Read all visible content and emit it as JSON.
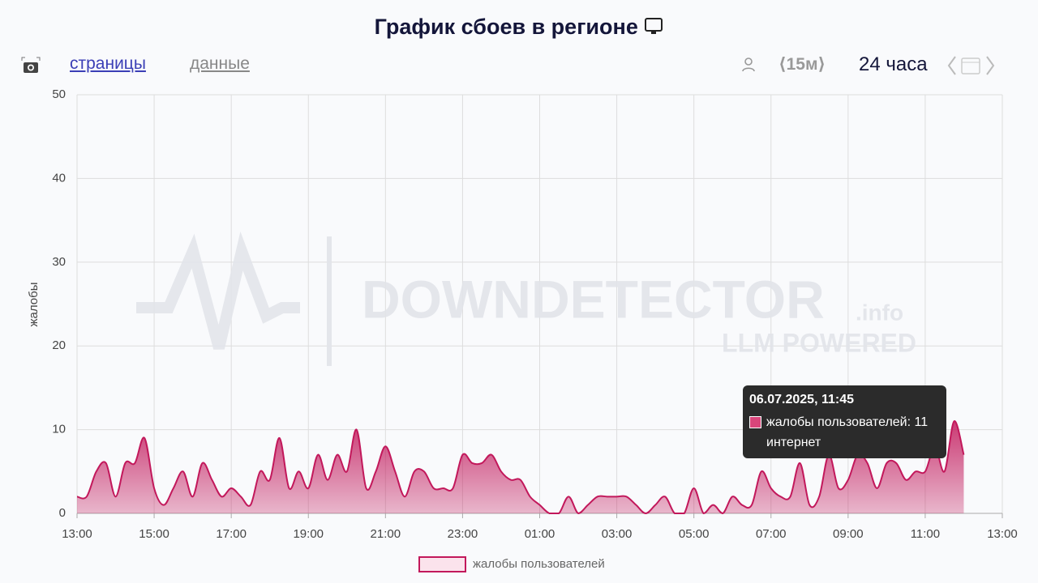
{
  "header": {
    "title": "График сбоев в регионе"
  },
  "toolbar": {
    "tab_pages": "страницы",
    "tab_data": "данные",
    "interval": "⟨15м⟩",
    "range": "24 часа"
  },
  "watermark": {
    "brand": "DOWNDETECTOR",
    "domain": ".info",
    "tagline": "LLM POWERED"
  },
  "tooltip": {
    "title": "06.07.2025, 11:45",
    "label": "жалобы пользователей: 11",
    "sub": "интернет"
  },
  "chart_data": {
    "type": "area",
    "y_label": "жалобы",
    "x": [
      "13:00",
      "13:15",
      "13:30",
      "13:45",
      "14:00",
      "14:15",
      "14:30",
      "14:45",
      "15:00",
      "15:15",
      "15:30",
      "15:45",
      "16:00",
      "16:15",
      "16:30",
      "16:45",
      "17:00",
      "17:15",
      "17:30",
      "17:45",
      "18:00",
      "18:15",
      "18:30",
      "18:45",
      "19:00",
      "19:15",
      "19:30",
      "19:45",
      "20:00",
      "20:15",
      "20:30",
      "20:45",
      "21:00",
      "21:15",
      "21:30",
      "21:45",
      "22:00",
      "22:15",
      "22:30",
      "22:45",
      "23:00",
      "23:15",
      "23:30",
      "23:45",
      "00:00",
      "00:15",
      "00:30",
      "00:45",
      "01:00",
      "01:15",
      "01:30",
      "01:45",
      "02:00",
      "02:15",
      "02:30",
      "02:45",
      "03:00",
      "03:15",
      "03:30",
      "03:45",
      "04:00",
      "04:15",
      "04:30",
      "04:45",
      "05:00",
      "05:15",
      "05:30",
      "05:45",
      "06:00",
      "06:15",
      "06:30",
      "06:45",
      "07:00",
      "07:15",
      "07:30",
      "07:45",
      "08:00",
      "08:15",
      "08:30",
      "08:45",
      "09:00",
      "09:15",
      "09:30",
      "09:45",
      "10:00",
      "10:15",
      "10:30",
      "10:45",
      "11:00",
      "11:15",
      "11:30",
      "11:45",
      "12:00"
    ],
    "series": [
      {
        "name": "жалобы пользователей",
        "color": "#c2185b",
        "values": [
          2,
          2,
          5,
          6,
          2,
          6,
          6,
          9,
          3,
          1,
          3,
          5,
          2,
          6,
          4,
          2,
          3,
          2,
          1,
          5,
          4,
          9,
          3,
          5,
          3,
          7,
          4,
          7,
          5,
          10,
          3,
          5,
          8,
          5,
          2,
          5,
          5,
          3,
          3,
          3,
          7,
          6,
          6,
          7,
          5,
          4,
          4,
          2,
          1,
          0,
          0,
          2,
          0,
          1,
          2,
          2,
          2,
          2,
          1,
          0,
          1,
          2,
          0,
          0,
          3,
          0,
          1,
          0,
          2,
          1,
          1,
          5,
          3,
          2,
          2,
          6,
          1,
          2,
          7,
          3,
          4,
          7,
          6,
          3,
          6,
          6,
          4,
          5,
          5,
          8,
          5,
          11,
          7
        ]
      }
    ],
    "xlim": [
      "13:00",
      "13:00"
    ],
    "xticks": [
      "13:00",
      "15:00",
      "17:00",
      "19:00",
      "21:00",
      "23:00",
      "01:00",
      "03:00",
      "05:00",
      "07:00",
      "09:00",
      "11:00",
      "13:00"
    ],
    "ylim": [
      0,
      50
    ],
    "yticks": [
      0,
      10,
      20,
      30,
      40,
      50
    ],
    "grid": true,
    "legend": "bottom"
  }
}
